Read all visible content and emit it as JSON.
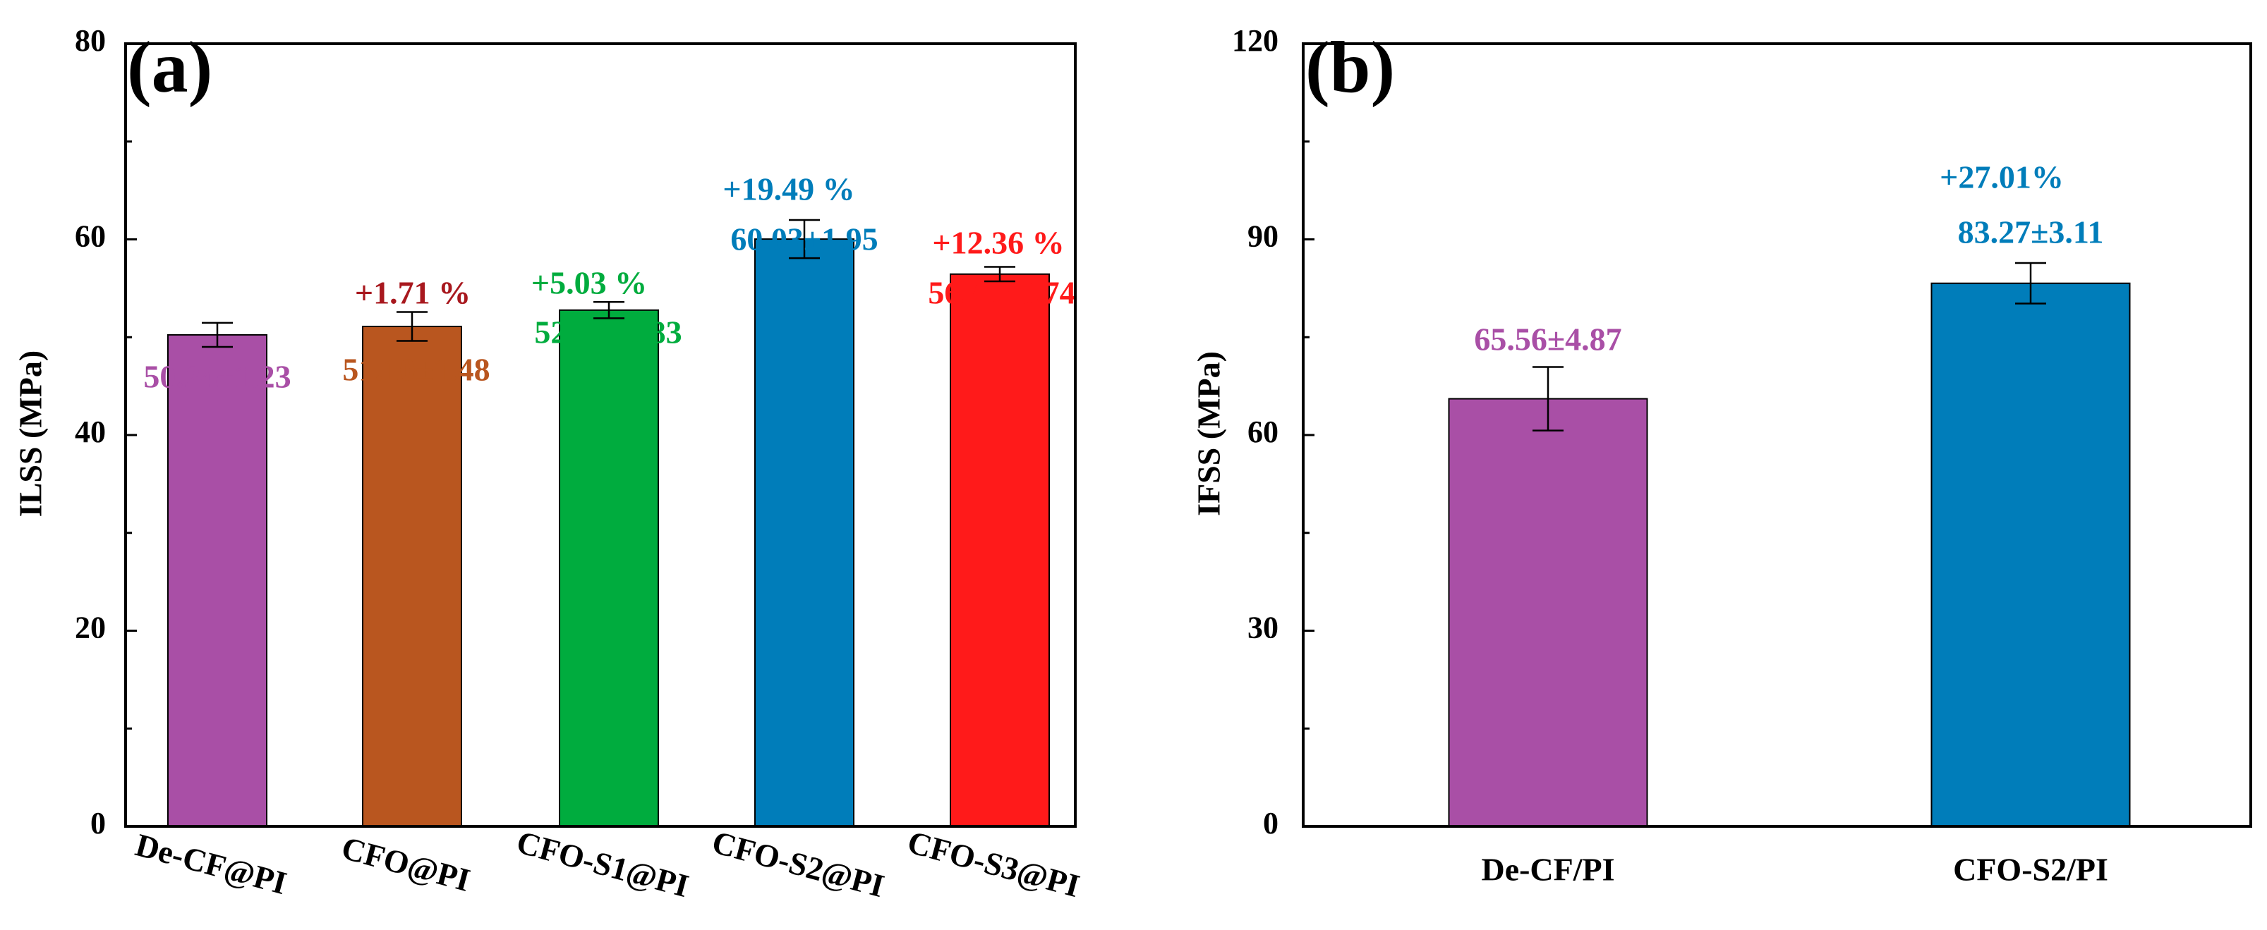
{
  "chart_data": [
    {
      "type": "bar",
      "panel_label": "(a)",
      "ylabel": "ILSS (MPa)",
      "xlabel": "",
      "ylim": [
        0,
        80
      ],
      "yticks": [
        0,
        20,
        40,
        60,
        80
      ],
      "categories": [
        "De-CF@PI",
        "CFO@PI",
        "CFO-S1@PI",
        "CFO-S2@PI",
        "CFO-S3@PI"
      ],
      "values": [
        50.24,
        51.1,
        52.77,
        60.03,
        56.45
      ],
      "errors": [
        1.23,
        1.48,
        0.83,
        1.95,
        0.74
      ],
      "colors": [
        "#A94FA6",
        "#B9561F",
        "#00AC3E",
        "#007DBA",
        "#FF1A1A"
      ],
      "value_labels": [
        "50.24±1.23",
        "51.10±1.48",
        "52.77±0.83",
        "60.03±1.95",
        "56.45±0.74"
      ],
      "value_label_colors": [
        "#A94FA6",
        "#B9561F",
        "#00AC3E",
        "#007DBA",
        "#FF1A1A"
      ],
      "percent_labels": [
        "",
        "+1.71 %",
        "+5.03 %",
        "+19.49 %",
        "+12.36 %"
      ],
      "percent_label_colors": [
        "",
        "#A8181E",
        "#00AC3E",
        "#007DBA",
        "#FF1A1A"
      ],
      "grid": false
    },
    {
      "type": "bar",
      "panel_label": "(b)",
      "ylabel": "IFSS (MPa)",
      "xlabel": "",
      "ylim": [
        0,
        120
      ],
      "yticks": [
        0,
        30,
        60,
        90,
        120
      ],
      "categories": [
        "De-CF/PI",
        "CFO-S2/PI"
      ],
      "values": [
        65.56,
        83.27
      ],
      "errors": [
        4.87,
        3.11
      ],
      "colors": [
        "#A94FA6",
        "#007DBA"
      ],
      "value_labels": [
        "65.56±4.87",
        "83.27±3.11"
      ],
      "value_label_colors": [
        "#A94FA6",
        "#007DBA"
      ],
      "percent_labels": [
        "",
        "+27.01%"
      ],
      "percent_label_colors": [
        "",
        "#007DBA"
      ],
      "grid": false
    }
  ]
}
